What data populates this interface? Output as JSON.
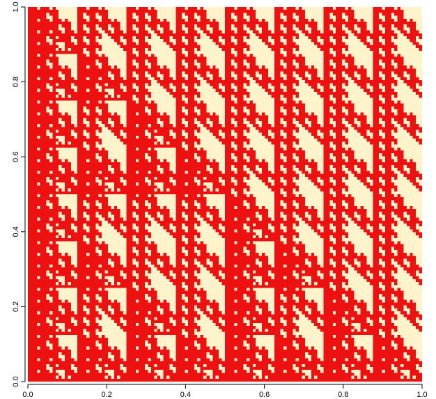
{
  "chart_data": {
    "type": "heatmap",
    "title": "",
    "xlabel": "",
    "ylabel": "",
    "xlim": [
      0,
      1
    ],
    "ylim": [
      0,
      1
    ],
    "grid_resolution": 128,
    "pattern": "binary image z(x,y) on the unit square with self-similar triangular (Sierpinski-like) structure; cells appear red or cream",
    "colors": {
      "high": "#ee1111",
      "low": "#fff3cc"
    },
    "x_ticks": [
      {
        "value": 0.0,
        "label": "0.0"
      },
      {
        "value": 0.2,
        "label": "0.2"
      },
      {
        "value": 0.4,
        "label": "0.4"
      },
      {
        "value": 0.6,
        "label": "0.6"
      },
      {
        "value": 0.8,
        "label": "0.8"
      },
      {
        "value": 1.0,
        "label": "1.0"
      }
    ],
    "y_ticks": [
      {
        "value": 0.0,
        "label": "0.0"
      },
      {
        "value": 0.2,
        "label": "0.2"
      },
      {
        "value": 0.4,
        "label": "0.4"
      },
      {
        "value": 0.6,
        "label": "0.6"
      },
      {
        "value": 0.8,
        "label": "0.8"
      },
      {
        "value": 1.0,
        "label": "1.0"
      }
    ],
    "grid": false,
    "legend": "none"
  }
}
